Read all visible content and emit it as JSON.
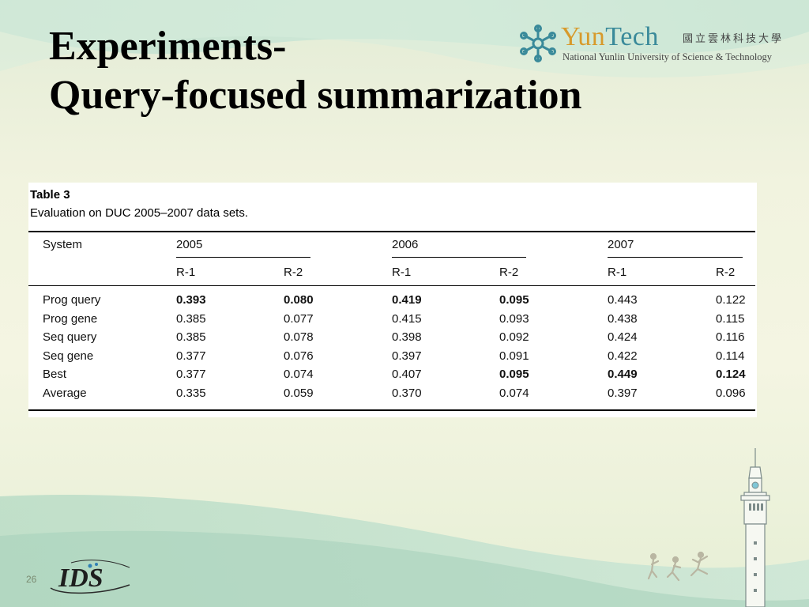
{
  "slide": {
    "title_line1": "Experiments-",
    "title_line2": "Query-focused summarization",
    "page_number": "26"
  },
  "logo": {
    "name_part1": "Yun",
    "name_part2": "Tech",
    "cjk": "國立雲林科技大學",
    "subtitle": "National Yunlin University of Science & Technology",
    "ids_text": "IDS"
  },
  "table": {
    "label": "Table 3",
    "caption": "Evaluation on DUC 2005–2007 data sets.",
    "system_header": "System",
    "years": [
      "2005",
      "2006",
      "2007"
    ],
    "metrics": [
      "R-1",
      "R-2",
      "R-1",
      "R-2",
      "R-1",
      "R-2"
    ],
    "rows": [
      {
        "system": "Prog query",
        "values": [
          "0.393",
          "0.080",
          "0.419",
          "0.095",
          "0.443",
          "0.122"
        ],
        "bold": [
          true,
          true,
          true,
          true,
          false,
          false
        ]
      },
      {
        "system": "Prog gene",
        "values": [
          "0.385",
          "0.077",
          "0.415",
          "0.093",
          "0.438",
          "0.115"
        ],
        "bold": [
          false,
          false,
          false,
          false,
          false,
          false
        ]
      },
      {
        "system": "Seq query",
        "values": [
          "0.385",
          "0.078",
          "0.398",
          "0.092",
          "0.424",
          "0.116"
        ],
        "bold": [
          false,
          false,
          false,
          false,
          false,
          false
        ]
      },
      {
        "system": "Seq gene",
        "values": [
          "0.377",
          "0.076",
          "0.397",
          "0.091",
          "0.422",
          "0.114"
        ],
        "bold": [
          false,
          false,
          false,
          false,
          false,
          false
        ]
      },
      {
        "system": "Best",
        "values": [
          "0.377",
          "0.074",
          "0.407",
          "0.095",
          "0.449",
          "0.124"
        ],
        "bold": [
          false,
          false,
          false,
          true,
          true,
          true
        ]
      },
      {
        "system": "Average",
        "values": [
          "0.335",
          "0.059",
          "0.370",
          "0.074",
          "0.397",
          "0.096"
        ],
        "bold": [
          false,
          false,
          false,
          false,
          false,
          false
        ]
      }
    ]
  }
}
